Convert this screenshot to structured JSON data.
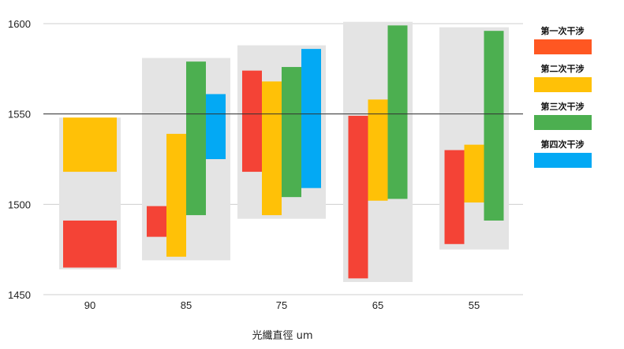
{
  "chart_data": {
    "type": "bar",
    "subtype": "floating-range",
    "title": "",
    "xlabel": "光纖直徑 um",
    "ylabel": "",
    "ylim": [
      1450,
      1600
    ],
    "yticks": [
      1450,
      1500,
      1550,
      1600
    ],
    "reference_line": 1550,
    "grid": true,
    "legend_position": "right",
    "categories": [
      "90",
      "85",
      "75",
      "65",
      "55"
    ],
    "group_ranges": [
      [
        1464,
        1548
      ],
      [
        1469,
        1581
      ],
      [
        1492,
        1588
      ],
      [
        1457,
        1601
      ],
      [
        1475,
        1598
      ]
    ],
    "series": [
      {
        "name": "第一次干涉",
        "color": "#f44336",
        "ranges": [
          [
            1465,
            1491
          ],
          [
            1482,
            1499
          ],
          [
            1518,
            1574
          ],
          [
            1459,
            1549
          ],
          [
            1478,
            1530
          ]
        ]
      },
      {
        "name": "第二次干涉",
        "color": "#ffc107",
        "ranges": [
          [
            1518,
            1548
          ],
          [
            1471,
            1539
          ],
          [
            1494,
            1568
          ],
          [
            1502,
            1558
          ],
          [
            1501,
            1533
          ]
        ]
      },
      {
        "name": "第三次干涉",
        "color": "#4caf50",
        "ranges": [
          null,
          [
            1494,
            1579
          ],
          [
            1504,
            1576
          ],
          [
            1503,
            1599
          ],
          [
            1491,
            1596
          ]
        ]
      },
      {
        "name": "第四次干涉",
        "color": "#03a9f4",
        "ranges": [
          null,
          [
            1525,
            1561
          ],
          [
            1509,
            1586
          ],
          null,
          null
        ]
      }
    ],
    "legend_colors": [
      "#ff5722",
      "#ffc107",
      "#4caf50",
      "#03a9f4"
    ],
    "band_color": "#e4e4e4"
  }
}
